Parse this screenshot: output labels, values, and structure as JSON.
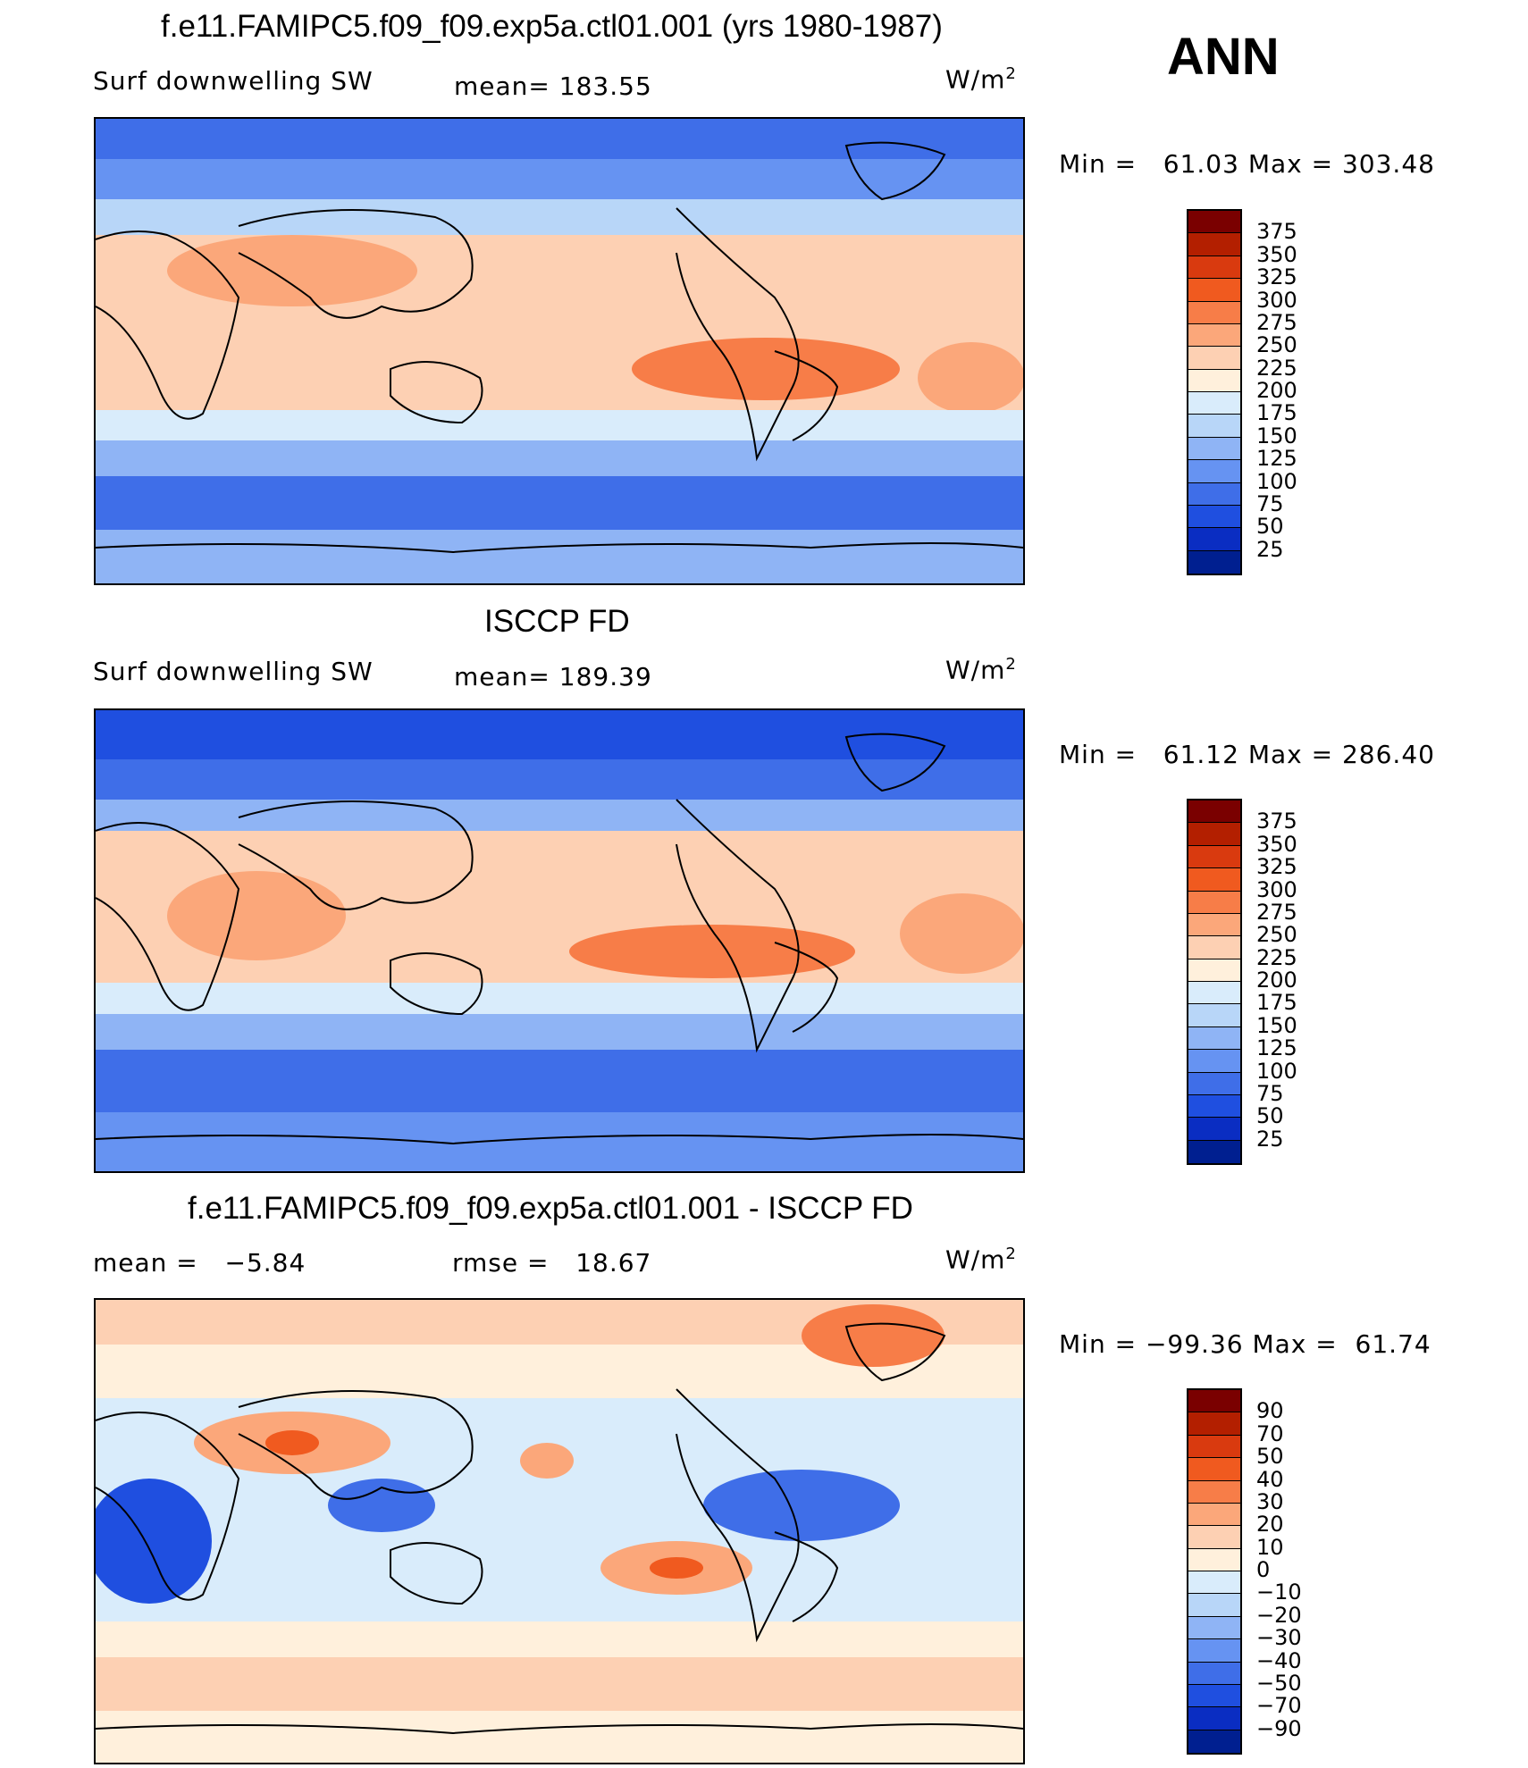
{
  "season": "ANN",
  "units_base": "W/m",
  "units_exp": "2",
  "palette_abs": [
    "#7a0000",
    "#b31f00",
    "#d93a0f",
    "#f05a1f",
    "#f77d48",
    "#fba77a",
    "#fdd0b3",
    "#fff0dc",
    "#d9ecfb",
    "#b8d6f8",
    "#8fb4f5",
    "#6693f2",
    "#3f6ee8",
    "#1f4fe0",
    "#0a2dc2",
    "#001f90"
  ],
  "palette_diff": [
    "#7a0000",
    "#b31f00",
    "#d93a0f",
    "#f05a1f",
    "#f77d48",
    "#fba77a",
    "#fdd0b3",
    "#fff0dc",
    "#d9ecfb",
    "#b8d6f8",
    "#8fb4f5",
    "#6693f2",
    "#3f6ee8",
    "#1f4fe0",
    "#0a2dc2",
    "#001f90"
  ],
  "chart_data": [
    {
      "type": "heatmap",
      "title": "f.e11.FAMIPC5.f09_f09.exp5a.ctl01.001 (yrs 1980-1987)",
      "field": "Surf downwelling SW",
      "mean_label": "mean=",
      "mean": "183.55",
      "minmax_label_min": "Min =",
      "min": "61.03",
      "minmax_label_max": "Max =",
      "max": "303.48",
      "levels": [
        "375",
        "350",
        "325",
        "300",
        "275",
        "250",
        "225",
        "200",
        "175",
        "150",
        "125",
        "100",
        "75",
        "50",
        "25"
      ]
    },
    {
      "type": "heatmap",
      "title": "ISCCP FD",
      "field": "Surf downwelling SW",
      "mean_label": "mean=",
      "mean": "189.39",
      "minmax_label_min": "Min =",
      "min": "61.12",
      "minmax_label_max": "Max =",
      "max": "286.40",
      "levels": [
        "375",
        "350",
        "325",
        "300",
        "275",
        "250",
        "225",
        "200",
        "175",
        "150",
        "125",
        "100",
        "75",
        "50",
        "25"
      ]
    },
    {
      "type": "heatmap",
      "title": "f.e11.FAMIPC5.f09_f09.exp5a.ctl01.001 - ISCCP FD",
      "mean_label": "mean =",
      "mean": "−5.84",
      "rmse_label": "rmse =",
      "rmse": "18.67",
      "minmax_label_min": "Min =",
      "min": "−99.36",
      "minmax_label_max": "Max =",
      "max": "61.74",
      "levels": [
        "90",
        "70",
        "50",
        "40",
        "30",
        "20",
        "10",
        "0",
        "−10",
        "−20",
        "−30",
        "−40",
        "−50",
        "−70",
        "−90"
      ]
    }
  ]
}
